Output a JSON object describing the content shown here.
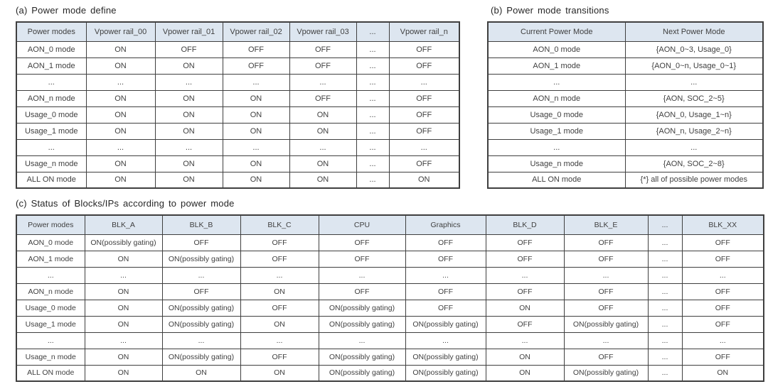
{
  "colors": {
    "header_bg": "#dde6f0",
    "border": "#3f3f3f",
    "text": "#404040",
    "title": "#262626"
  },
  "sections": {
    "a": {
      "title": "(a) Power mode define",
      "table": {
        "headers": [
          "Power modes",
          "Vpower rail_00",
          "Vpower rail_01",
          "Vpower rail_02",
          "Vpower rail_03",
          "...",
          "Vpower rail_n"
        ],
        "rows": [
          [
            "AON_0 mode",
            "ON",
            "OFF",
            "OFF",
            "OFF",
            "...",
            "OFF"
          ],
          [
            "AON_1 mode",
            "ON",
            "ON",
            "OFF",
            "OFF",
            "...",
            "OFF"
          ],
          [
            "...",
            "...",
            "...",
            "...",
            "...",
            "...",
            "..."
          ],
          [
            "AON_n mode",
            "ON",
            "ON",
            "ON",
            "OFF",
            "...",
            "OFF"
          ],
          [
            "Usage_0 mode",
            "ON",
            "ON",
            "ON",
            "ON",
            "...",
            "OFF"
          ],
          [
            "Usage_1 mode",
            "ON",
            "ON",
            "ON",
            "ON",
            "...",
            "OFF"
          ],
          [
            "...",
            "...",
            "...",
            "...",
            "...",
            "...",
            "..."
          ],
          [
            "Usage_n mode",
            "ON",
            "ON",
            "ON",
            "ON",
            "...",
            "OFF"
          ],
          [
            "ALL ON mode",
            "ON",
            "ON",
            "ON",
            "ON",
            "...",
            "ON"
          ]
        ]
      }
    },
    "b": {
      "title": "(b) Power mode transitions",
      "table": {
        "headers": [
          "Current Power Mode",
          "Next Power Mode"
        ],
        "rows": [
          [
            "AON_0 mode",
            "{AON_0~3, Usage_0}"
          ],
          [
            "AON_1 mode",
            "{AON_0~n, Usage_0~1}"
          ],
          [
            "...",
            "..."
          ],
          [
            "AON_n mode",
            "{AON, SOC_2~5}"
          ],
          [
            "Usage_0 mode",
            "{AON_0, Usage_1~n}"
          ],
          [
            "Usage_1 mode",
            "{AON_n, Usage_2~n}"
          ],
          [
            "...",
            "..."
          ],
          [
            "Usage_n mode",
            "{AON, SOC_2~8}"
          ],
          [
            "ALL ON mode",
            "{*} all of possible power modes"
          ]
        ]
      }
    },
    "c": {
      "title": "(c) Status of Blocks/IPs according to power mode",
      "table": {
        "headers": [
          "Power modes",
          "BLK_A",
          "BLK_B",
          "BLK_C",
          "CPU",
          "Graphics",
          "BLK_D",
          "BLK_E",
          "...",
          "BLK_XX"
        ],
        "rows": [
          [
            "AON_0 mode",
            "ON(possibly gating)",
            "OFF",
            "OFF",
            "OFF",
            "OFF",
            "OFF",
            "OFF",
            "...",
            "OFF"
          ],
          [
            "AON_1 mode",
            "ON",
            "ON(possibly gating)",
            "OFF",
            "OFF",
            "OFF",
            "OFF",
            "OFF",
            "...",
            "OFF"
          ],
          [
            "...",
            "...",
            "...",
            "...",
            "...",
            "...",
            "...",
            "...",
            "...",
            "..."
          ],
          [
            "AON_n mode",
            "ON",
            "OFF",
            "ON",
            "OFF",
            "OFF",
            "OFF",
            "OFF",
            "...",
            "OFF"
          ],
          [
            "Usage_0 mode",
            "ON",
            "ON(possibly gating)",
            "OFF",
            "ON(possibly gating)",
            "OFF",
            "ON",
            "OFF",
            "...",
            "OFF"
          ],
          [
            "Usage_1 mode",
            "ON",
            "ON(possibly gating)",
            "ON",
            "ON(possibly gating)",
            "ON(possibly gating)",
            "OFF",
            "ON(possibly gating)",
            "...",
            "OFF"
          ],
          [
            "...",
            "...",
            "...",
            "...",
            "...",
            "...",
            "...",
            "...",
            "...",
            "..."
          ],
          [
            "Usage_n mode",
            "ON",
            "ON(possibly gating)",
            "OFF",
            "ON(possibly gating)",
            "ON(possibly gating)",
            "ON",
            "OFF",
            "...",
            "OFF"
          ],
          [
            "ALL ON mode",
            "ON",
            "ON",
            "ON",
            "ON(possibly gating)",
            "ON(possibly gating)",
            "ON",
            "ON(possibly gating)",
            "...",
            "ON"
          ]
        ]
      }
    }
  }
}
